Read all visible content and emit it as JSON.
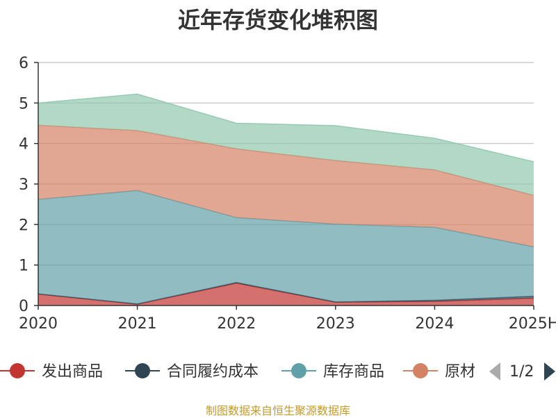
{
  "chart_data": {
    "type": "area",
    "title": "近年存货变化堆积图",
    "xlabel": "",
    "ylabel": "",
    "categories": [
      "2020",
      "2021",
      "2022",
      "2023",
      "2024",
      "2025H"
    ],
    "ylim": [
      0,
      6
    ],
    "yticks": [
      "0",
      "1",
      "2",
      "3",
      "4",
      "5",
      "6"
    ],
    "grid": true,
    "stacked": true,
    "series": [
      {
        "name": "发出商品",
        "color": "#c23531",
        "values": [
          0.28,
          0.03,
          0.55,
          0.08,
          0.1,
          0.18
        ]
      },
      {
        "name": "合同履约成本",
        "color": "#2f4554",
        "values": [
          0.01,
          0.01,
          0.02,
          0.01,
          0.03,
          0.05
        ]
      },
      {
        "name": "库存商品",
        "color": "#61a0a8",
        "values": [
          2.33,
          2.8,
          1.6,
          1.92,
          1.8,
          1.22
        ]
      },
      {
        "name": "原材料",
        "color": "#d48265",
        "values": [
          1.83,
          1.48,
          1.7,
          1.57,
          1.42,
          1.27
        ]
      },
      {
        "name": "",
        "color": "#91c7ae",
        "values": [
          0.55,
          0.9,
          0.63,
          0.86,
          0.78,
          0.83
        ]
      }
    ],
    "legend_position": "bottom",
    "legend_page": "1/2"
  },
  "source_note": "制图数据来自恒生聚源数据库"
}
